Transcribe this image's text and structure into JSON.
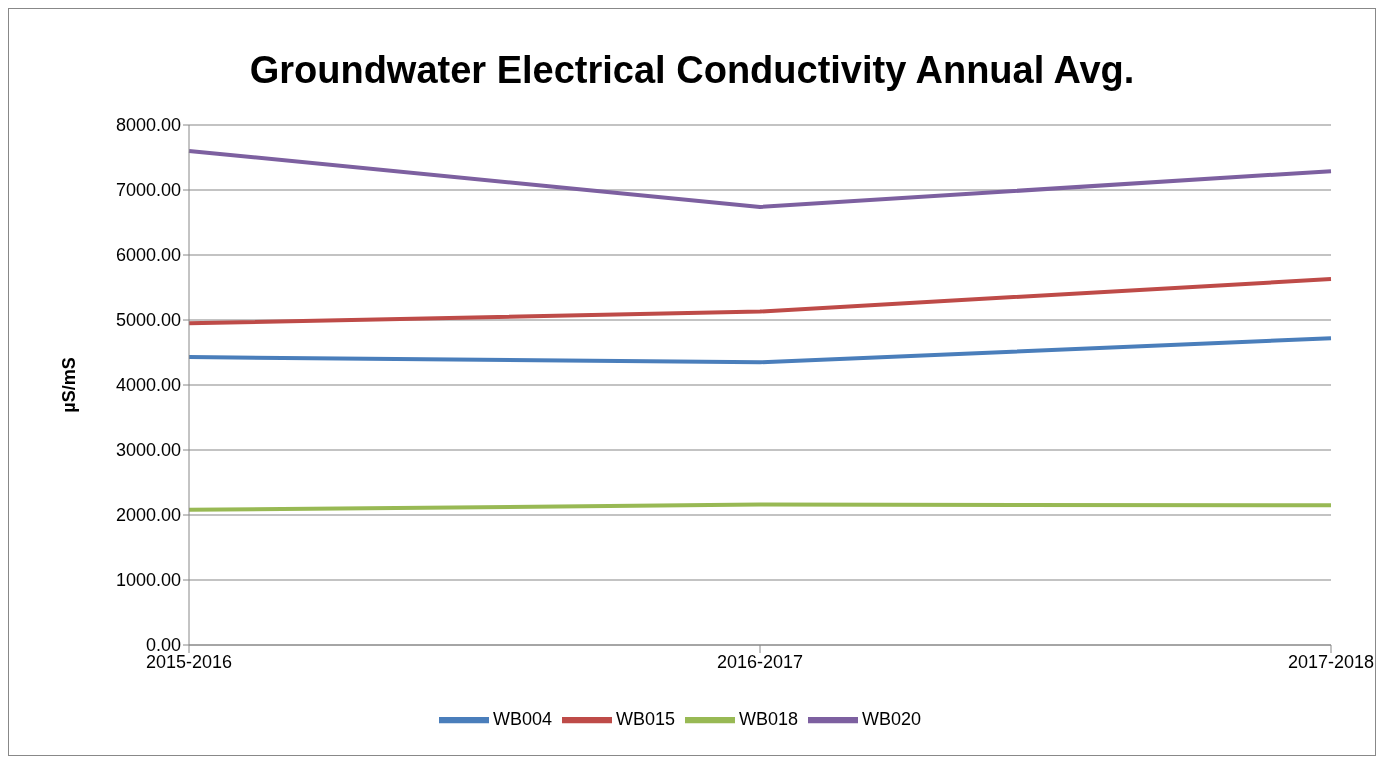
{
  "chart_data": {
    "type": "line",
    "title": "Groundwater Electrical Conductivity Annual Avg.",
    "ylabel": "µS/mS",
    "categories": [
      "2015-2016",
      "2016-2017",
      "2017-2018"
    ],
    "series": [
      {
        "name": "WB004",
        "color": "#4a7ebb",
        "values": [
          4430,
          4350,
          4720
        ]
      },
      {
        "name": "WB015",
        "color": "#be4b48",
        "values": [
          4950,
          5130,
          5630
        ]
      },
      {
        "name": "WB018",
        "color": "#98b954",
        "values": [
          2080,
          2160,
          2150
        ]
      },
      {
        "name": "WB020",
        "color": "#7d60a0",
        "values": [
          7600,
          6740,
          7290
        ]
      }
    ],
    "ylim": [
      0,
      8000
    ],
    "yticks": [
      {
        "value": 0,
        "label": "0.00"
      },
      {
        "value": 1000,
        "label": "1000.00"
      },
      {
        "value": 2000,
        "label": "2000.00"
      },
      {
        "value": 3000,
        "label": "3000.00"
      },
      {
        "value": 4000,
        "label": "4000.00"
      },
      {
        "value": 5000,
        "label": "5000.00"
      },
      {
        "value": 6000,
        "label": "6000.00"
      },
      {
        "value": 7000,
        "label": "7000.00"
      },
      {
        "value": 8000,
        "label": "8000.00"
      }
    ],
    "grid": "y",
    "legend": "bottom",
    "marker": "none",
    "line_style": "solid"
  }
}
